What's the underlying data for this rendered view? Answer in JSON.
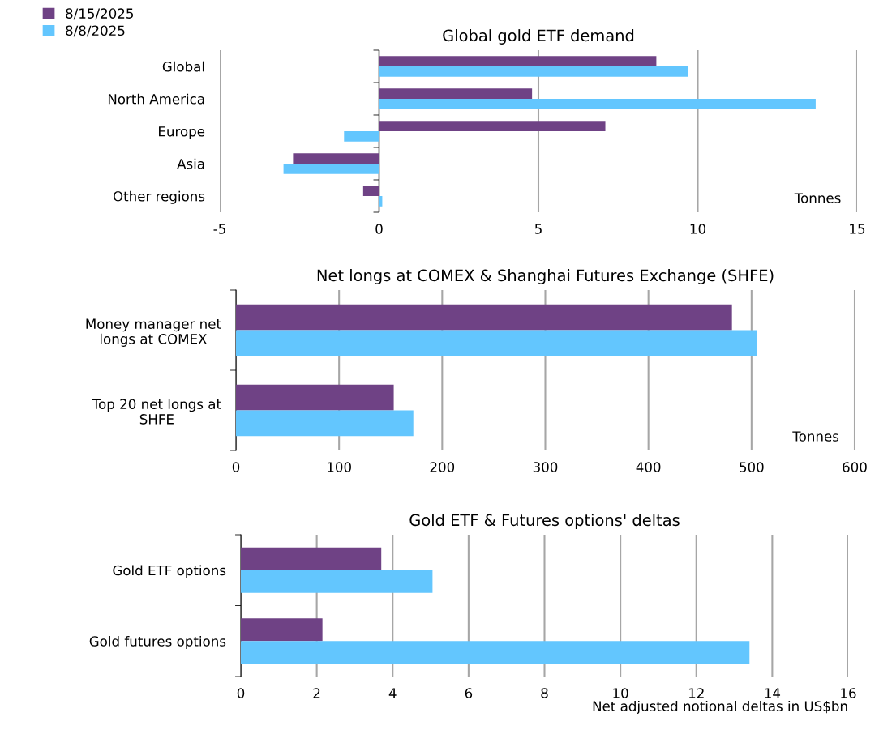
{
  "chart_data": [
    {
      "type": "bar",
      "orientation": "horizontal",
      "title": "Global gold ETF demand",
      "xlabel": "Tonnes",
      "categories": [
        "Global",
        "North America",
        "Europe",
        "Asia",
        "Other regions"
      ],
      "legend": "top left",
      "grid": "x",
      "xlim": [
        -5,
        15
      ],
      "xticks": [
        -5,
        0,
        5,
        10,
        15
      ],
      "series": [
        {
          "name": "8/15/2025",
          "color": "#6f4285",
          "values": [
            8.7,
            4.8,
            7.1,
            -2.7,
            -0.5
          ]
        },
        {
          "name": "8/8/2025",
          "color": "#63c6fe",
          "values": [
            9.7,
            13.7,
            -1.1,
            -3.0,
            0.1
          ]
        }
      ]
    },
    {
      "type": "bar",
      "orientation": "horizontal",
      "title": "Net longs at COMEX & Shanghai Futures Exchange (SHFE)",
      "xlabel": "Tonnes",
      "categories": [
        "Money manager net\nlongs at COMEX",
        "Top 20 net longs at\nSHFE"
      ],
      "grid": "x",
      "xlim": [
        0,
        600
      ],
      "xticks": [
        0,
        100,
        200,
        300,
        400,
        500,
        600
      ],
      "series": [
        {
          "color": "#6f4285",
          "values": [
            481,
            153
          ]
        },
        {
          "color": "#63c6fe",
          "values": [
            505,
            172
          ]
        }
      ]
    },
    {
      "type": "bar",
      "orientation": "horizontal",
      "title": "Gold ETF & Futures options' deltas",
      "xlabel": "Net adjusted notional deltas in US$bn",
      "categories": [
        "Gold ETF options",
        "Gold futures options"
      ],
      "grid": "x",
      "xlim": [
        0,
        16
      ],
      "xticks": [
        0,
        2,
        4,
        6,
        8,
        10,
        12,
        14,
        16
      ],
      "series": [
        {
          "color": "#6f4285",
          "values": [
            3.7,
            2.15
          ]
        },
        {
          "color": "#63c6fe",
          "values": [
            5.05,
            13.4
          ]
        }
      ]
    }
  ]
}
